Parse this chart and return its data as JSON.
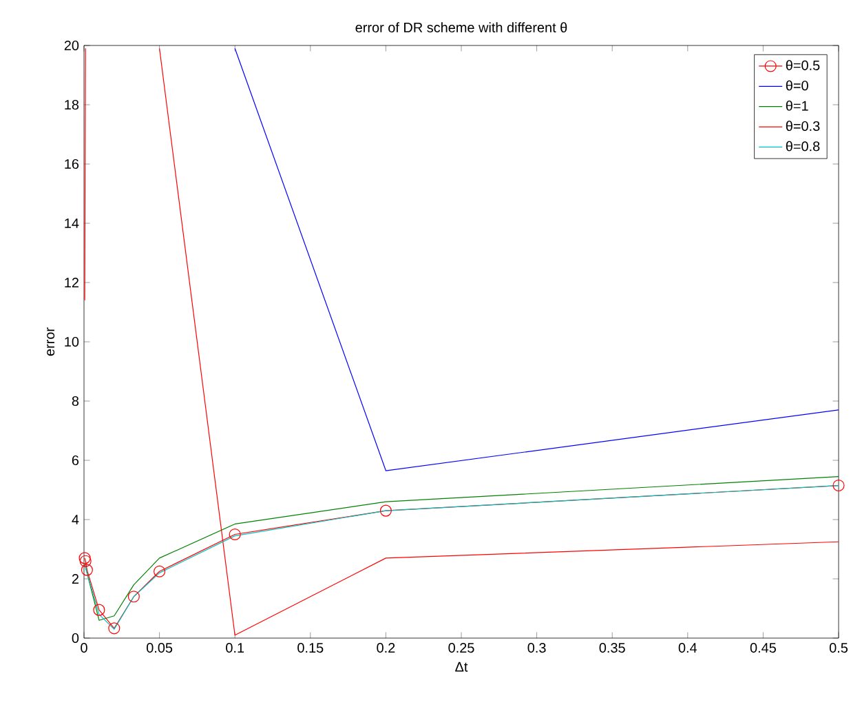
{
  "chart_data": {
    "type": "line",
    "title": "error of DR scheme with different θ",
    "xlabel": "Δt",
    "ylabel": "error",
    "xlim": [
      0,
      0.5
    ],
    "ylim": [
      0,
      20
    ],
    "xticks": [
      0,
      0.05,
      0.1,
      0.15,
      0.2,
      0.25,
      0.3,
      0.35,
      0.4,
      0.45,
      0.5
    ],
    "yticks": [
      0,
      2,
      4,
      6,
      8,
      10,
      12,
      14,
      16,
      18,
      20
    ],
    "grid": false,
    "legend": "top right",
    "series": [
      {
        "name": "θ=0.5",
        "color": "#ff0000",
        "marker": "circle",
        "x": [
          0.0005,
          0.001,
          0.002,
          0.01,
          0.02,
          0.033,
          0.05,
          0.1,
          0.2,
          0.5
        ],
        "values": [
          2.7,
          2.6,
          2.3,
          0.95,
          0.33,
          1.4,
          2.25,
          3.5,
          4.3,
          5.15
        ]
      },
      {
        "name": "θ=0",
        "color": "#0000ff",
        "marker": "none",
        "x": [
          0.1,
          0.2,
          0.5
        ],
        "values": [
          19.9,
          5.65,
          7.7
        ]
      },
      {
        "name": "θ=1",
        "color": "#008000",
        "marker": "none",
        "x": [
          0.0005,
          0.002,
          0.01,
          0.02,
          0.033,
          0.05,
          0.1,
          0.2,
          0.5
        ],
        "values": [
          2.5,
          2.2,
          0.6,
          0.75,
          1.8,
          2.7,
          3.85,
          4.6,
          5.45
        ]
      },
      {
        "name": "θ=0.3",
        "color": "#ff0000",
        "marker": "none",
        "x": [
          0.0005,
          0.001,
          0.002,
          0.01,
          0.02,
          0.033,
          0.05,
          0.1,
          0.2,
          0.5
        ],
        "values": [
          11.4,
          19.9,
          null,
          null,
          null,
          null,
          19.9,
          0.1,
          2.7,
          3.25
        ]
      },
      {
        "name": "θ=0.8",
        "color": "#00bfbf",
        "marker": "none",
        "x": [
          0.0005,
          0.002,
          0.01,
          0.02,
          0.033,
          0.05,
          0.1,
          0.2,
          0.5
        ],
        "values": [
          2.5,
          2.2,
          0.8,
          0.3,
          1.4,
          2.2,
          3.45,
          4.3,
          5.15
        ]
      }
    ]
  }
}
